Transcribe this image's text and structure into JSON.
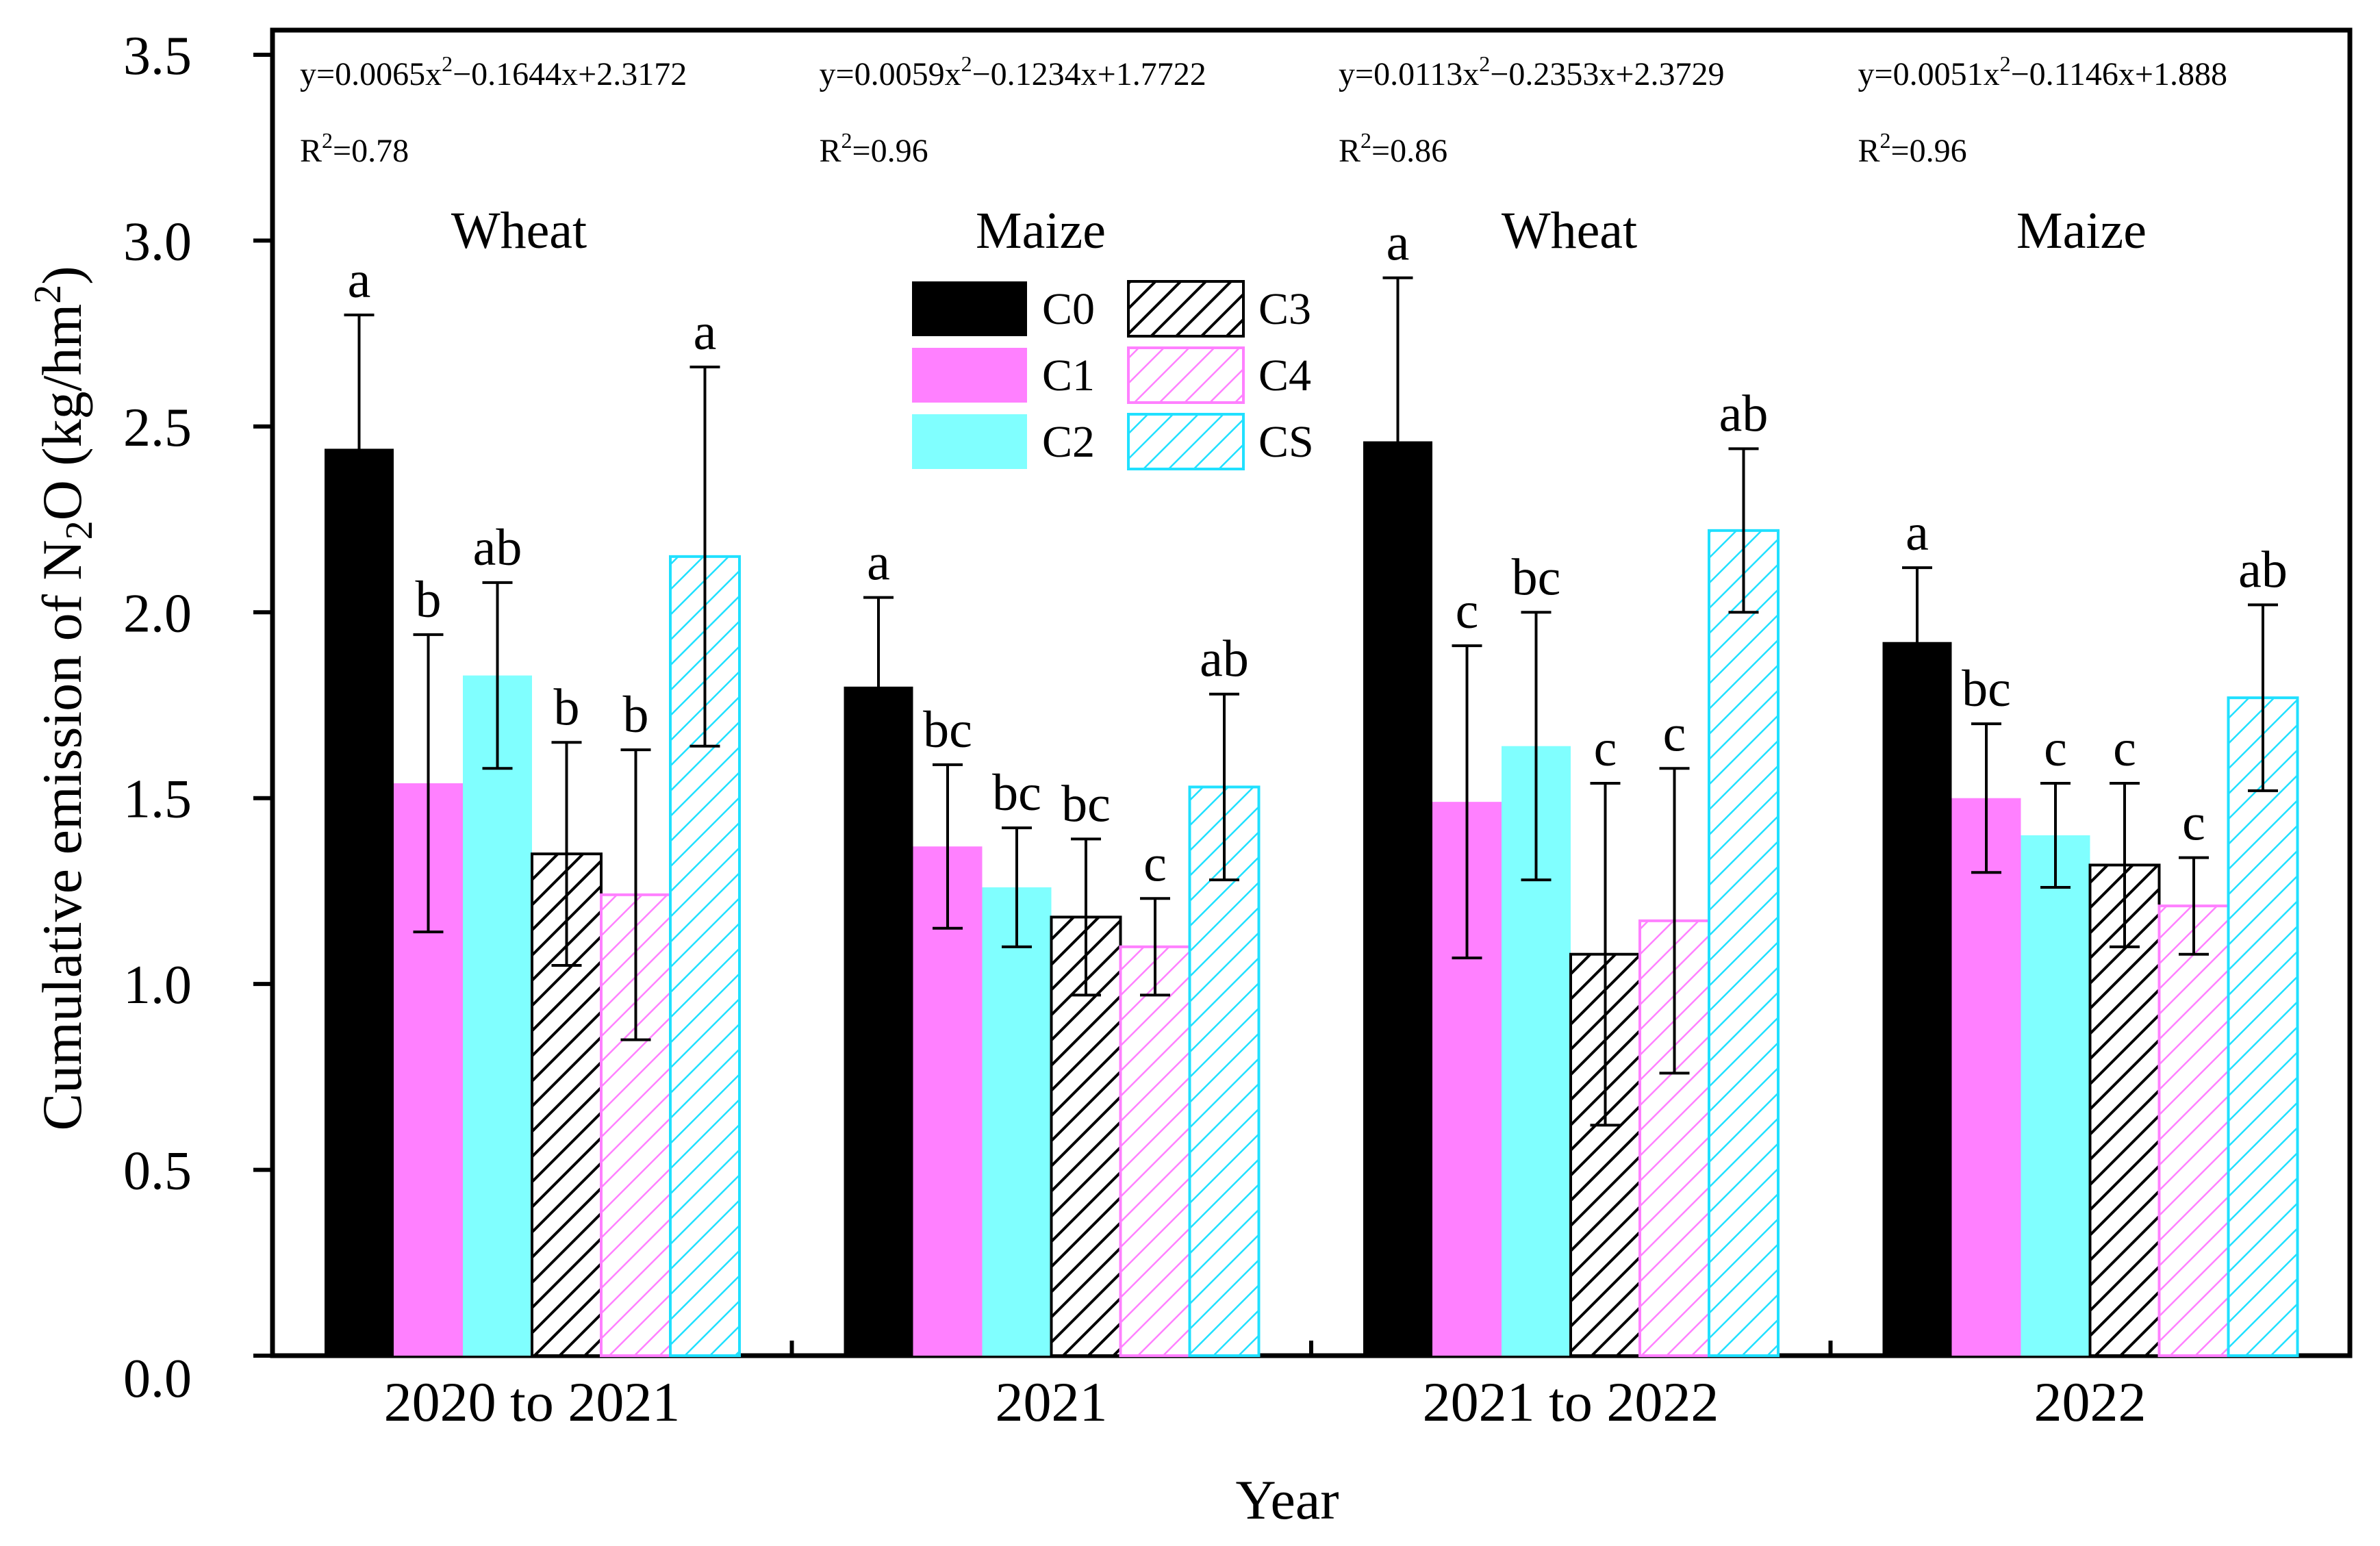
{
  "chart_data": {
    "type": "bar",
    "title": "",
    "xlabel": "Year",
    "ylabel": "Cumulative emission of N2O (kg/hm2)",
    "ylabel_parts": [
      "Cumulative emission of N",
      "2",
      "O (kg/hm",
      "2",
      ")"
    ],
    "ylim": [
      0,
      3.5
    ],
    "yticks": [
      "0.0",
      "0.5",
      "1.0",
      "1.5",
      "2.0",
      "2.5",
      "3.0",
      "3.5"
    ],
    "categories": [
      "2020 to 2021",
      "2021",
      "2021 to 2022",
      "2022"
    ],
    "crops": [
      "Wheat",
      "Maize",
      "Wheat",
      "Maize"
    ],
    "equations": [
      {
        "prefix": "y=0.0065x",
        "sup": "2",
        "suffix": "−0.1644x+2.3172",
        "r2_prefix": "R",
        "r2_sup": "2",
        "r2_value": "=0.78"
      },
      {
        "prefix": "y=0.0059x",
        "sup": "2",
        "suffix": "−0.1234x+1.7722",
        "r2_prefix": "R",
        "r2_sup": "2",
        "r2_value": "=0.96"
      },
      {
        "prefix": "y=0.0113x",
        "sup": "2",
        "suffix": "−0.2353x+2.3729",
        "r2_prefix": "R",
        "r2_sup": "2",
        "r2_value": "=0.86"
      },
      {
        "prefix": "y=0.0051x",
        "sup": "2",
        "suffix": "−0.1146x+1.888",
        "r2_prefix": "R",
        "r2_sup": "2",
        "r2_value": "=0.96"
      }
    ],
    "series": [
      {
        "name": "C0",
        "color": "#000000",
        "hatch": false,
        "values": [
          2.44,
          1.8,
          2.46,
          1.92
        ],
        "errors": [
          0.36,
          0.24,
          0.44,
          0.2
        ],
        "letters": [
          "a",
          "a",
          "a",
          "a"
        ]
      },
      {
        "name": "C1",
        "color": "#ff80ff",
        "hatch": false,
        "values": [
          1.54,
          1.37,
          1.49,
          1.5
        ],
        "errors": [
          0.4,
          0.22,
          0.42,
          0.2
        ],
        "letters": [
          "b",
          "bc",
          "c",
          "bc"
        ]
      },
      {
        "name": "C2",
        "color": "#80ffff",
        "hatch": false,
        "values": [
          1.83,
          1.26,
          1.64,
          1.4
        ],
        "errors": [
          0.25,
          0.16,
          0.36,
          0.14
        ],
        "letters": [
          "ab",
          "bc",
          "bc",
          "c"
        ]
      },
      {
        "name": "C3",
        "color": "#000000",
        "hatch": true,
        "values": [
          1.35,
          1.18,
          1.08,
          1.32
        ],
        "errors": [
          0.3,
          0.21,
          0.46,
          0.22
        ],
        "letters": [
          "b",
          "bc",
          "c",
          "c"
        ]
      },
      {
        "name": "C4",
        "color": "#ff80ff",
        "hatch": true,
        "values": [
          1.24,
          1.1,
          1.17,
          1.21
        ],
        "errors": [
          0.39,
          0.13,
          0.41,
          0.13
        ],
        "letters": [
          "b",
          "c",
          "c",
          "c"
        ]
      },
      {
        "name": "CS",
        "color": "#20e0ff",
        "hatch": true,
        "values": [
          2.15,
          1.53,
          2.22,
          1.77
        ],
        "errors": [
          0.51,
          0.25,
          0.22,
          0.25
        ],
        "letters": [
          "a",
          "ab",
          "ab",
          "ab"
        ]
      }
    ],
    "legend": {
      "position": "top-center",
      "columns": 2
    }
  }
}
